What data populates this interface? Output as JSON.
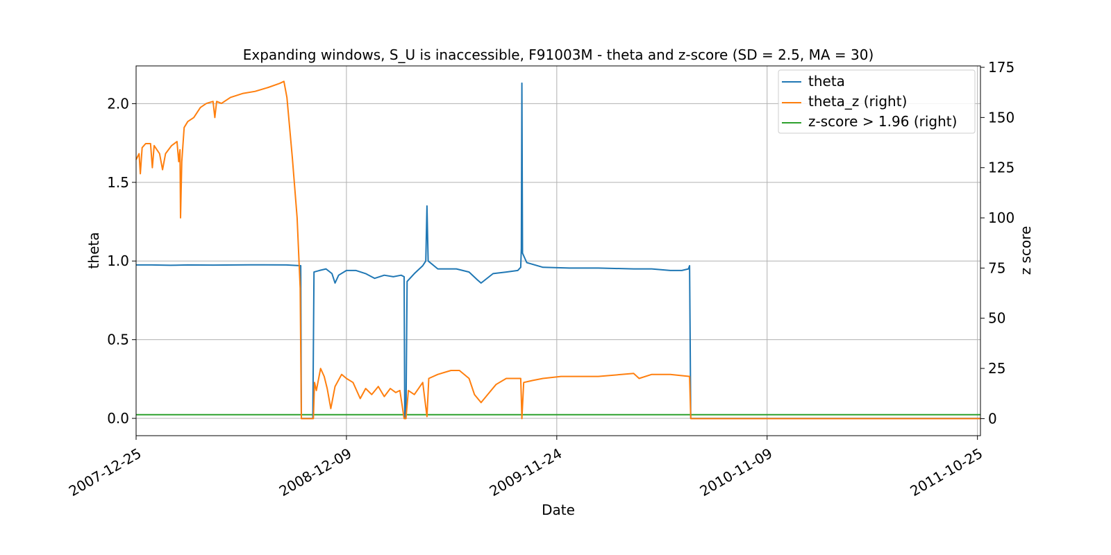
{
  "chart_data": {
    "type": "line",
    "title": "Expanding windows, S_U is inaccessible, F91003M - theta and z-score (SD = 2.5, MA = 30)",
    "xlabel": "Date",
    "ylabel_left": "theta",
    "ylabel_right": "z score",
    "xlim": [
      "2007-12-25",
      "2011-10-30"
    ],
    "ylim_left": [
      -0.11,
      2.24
    ],
    "ylim_right": [
      -8.5,
      175.7
    ],
    "x_ticks": [
      "2007-12-25",
      "2008-12-09",
      "2009-11-24",
      "2010-11-09",
      "2011-10-25"
    ],
    "y_ticks_left": [
      "0.0",
      "0.5",
      "1.0",
      "1.5",
      "2.0"
    ],
    "y_ticks_right": [
      "0",
      "25",
      "50",
      "75",
      "100",
      "125",
      "150",
      "175"
    ],
    "grid": true,
    "legend_position": "top-right",
    "legend": [
      "theta",
      "theta_z (right)",
      "z-score > 1.96 (right)"
    ],
    "colors": {
      "theta": "#1f77b4",
      "theta_z": "#ff7f0e",
      "threshold": "#2ca02c"
    },
    "series": [
      {
        "name": "theta",
        "axis": "left",
        "points": [
          [
            "2007-12-25",
            0.975
          ],
          [
            "2008-01-20",
            0.975
          ],
          [
            "2008-02-20",
            0.973
          ],
          [
            "2008-03-20",
            0.975
          ],
          [
            "2008-05-01",
            0.974
          ],
          [
            "2008-07-01",
            0.976
          ],
          [
            "2008-08-31",
            0.975
          ],
          [
            "2008-09-24",
            0.97
          ],
          [
            "2008-09-25",
            0.0
          ],
          [
            "2008-10-14",
            0.0
          ],
          [
            "2008-10-16",
            0.93
          ],
          [
            "2008-10-25",
            0.94
          ],
          [
            "2008-11-05",
            0.95
          ],
          [
            "2008-11-15",
            0.92
          ],
          [
            "2008-11-20",
            0.86
          ],
          [
            "2008-11-26",
            0.91
          ],
          [
            "2008-12-09",
            0.94
          ],
          [
            "2008-12-25",
            0.94
          ],
          [
            "2009-01-10",
            0.92
          ],
          [
            "2009-01-25",
            0.89
          ],
          [
            "2009-02-10",
            0.91
          ],
          [
            "2009-02-25",
            0.9
          ],
          [
            "2009-03-10",
            0.91
          ],
          [
            "2009-03-15",
            0.9
          ],
          [
            "2009-03-16",
            0.0
          ],
          [
            "2009-03-18",
            0.0
          ],
          [
            "2009-03-20",
            0.87
          ],
          [
            "2009-04-01",
            0.92
          ],
          [
            "2009-04-15",
            0.97
          ],
          [
            "2009-04-20",
            1.0
          ],
          [
            "2009-04-22",
            1.35
          ],
          [
            "2009-04-24",
            1.0
          ],
          [
            "2009-05-10",
            0.95
          ],
          [
            "2009-06-10",
            0.95
          ],
          [
            "2009-07-01",
            0.93
          ],
          [
            "2009-07-15",
            0.88
          ],
          [
            "2009-07-21",
            0.86
          ],
          [
            "2009-08-10",
            0.92
          ],
          [
            "2009-09-01",
            0.93
          ],
          [
            "2009-09-20",
            0.94
          ],
          [
            "2009-09-25",
            0.96
          ],
          [
            "2009-09-26",
            1.08
          ],
          [
            "2009-09-27",
            2.13
          ],
          [
            "2009-09-28",
            1.05
          ],
          [
            "2009-10-05",
            0.99
          ],
          [
            "2009-11-01",
            0.96
          ],
          [
            "2009-12-15",
            0.955
          ],
          [
            "2010-02-01",
            0.955
          ],
          [
            "2010-04-01",
            0.95
          ],
          [
            "2010-05-01",
            0.95
          ],
          [
            "2010-06-01",
            0.94
          ],
          [
            "2010-06-20",
            0.94
          ],
          [
            "2010-07-01",
            0.95
          ],
          [
            "2010-07-03",
            0.97
          ],
          [
            "2010-07-05",
            0.0
          ],
          [
            "2011-10-30",
            0.0
          ]
        ]
      },
      {
        "name": "theta_z (right)",
        "axis": "right",
        "points": [
          [
            "2007-12-25",
            129
          ],
          [
            "2007-12-30",
            132
          ],
          [
            "2008-01-01",
            122
          ],
          [
            "2008-01-04",
            135
          ],
          [
            "2008-01-10",
            137
          ],
          [
            "2008-01-18",
            137
          ],
          [
            "2008-01-21",
            125
          ],
          [
            "2008-01-24",
            136
          ],
          [
            "2008-02-02",
            132
          ],
          [
            "2008-02-07",
            124
          ],
          [
            "2008-02-12",
            132
          ],
          [
            "2008-02-22",
            136
          ],
          [
            "2008-03-02",
            138
          ],
          [
            "2008-03-05",
            128
          ],
          [
            "2008-03-07",
            134
          ],
          [
            "2008-03-08",
            100
          ],
          [
            "2008-03-10",
            128
          ],
          [
            "2008-03-14",
            145
          ],
          [
            "2008-03-20",
            148
          ],
          [
            "2008-03-30",
            150
          ],
          [
            "2008-04-10",
            155
          ],
          [
            "2008-04-20",
            157
          ],
          [
            "2008-05-01",
            158
          ],
          [
            "2008-05-04",
            150
          ],
          [
            "2008-05-07",
            158
          ],
          [
            "2008-05-15",
            157
          ],
          [
            "2008-05-30",
            160
          ],
          [
            "2008-06-20",
            162
          ],
          [
            "2008-07-10",
            163
          ],
          [
            "2008-08-01",
            165
          ],
          [
            "2008-08-20",
            167
          ],
          [
            "2008-08-27",
            168
          ],
          [
            "2008-09-01",
            160
          ],
          [
            "2008-09-10",
            130
          ],
          [
            "2008-09-18",
            100
          ],
          [
            "2008-09-23",
            65
          ],
          [
            "2008-09-25",
            0
          ],
          [
            "2008-10-15",
            0
          ],
          [
            "2008-10-17",
            18
          ],
          [
            "2008-10-20",
            14
          ],
          [
            "2008-10-27",
            25
          ],
          [
            "2008-11-02",
            21
          ],
          [
            "2008-11-07",
            15
          ],
          [
            "2008-11-13",
            5
          ],
          [
            "2008-11-20",
            16
          ],
          [
            "2008-12-01",
            22
          ],
          [
            "2008-12-09",
            20
          ],
          [
            "2008-12-20",
            18
          ],
          [
            "2009-01-01",
            10
          ],
          [
            "2009-01-10",
            15
          ],
          [
            "2009-01-20",
            12
          ],
          [
            "2009-01-31",
            16
          ],
          [
            "2009-02-10",
            11
          ],
          [
            "2009-02-20",
            15
          ],
          [
            "2009-03-01",
            13
          ],
          [
            "2009-03-08",
            14
          ],
          [
            "2009-03-15",
            0
          ],
          [
            "2009-03-18",
            0
          ],
          [
            "2009-03-22",
            14
          ],
          [
            "2009-04-01",
            12
          ],
          [
            "2009-04-15",
            18
          ],
          [
            "2009-04-22",
            1
          ],
          [
            "2009-04-25",
            20
          ],
          [
            "2009-05-10",
            22
          ],
          [
            "2009-06-01",
            24
          ],
          [
            "2009-06-15",
            24
          ],
          [
            "2009-07-01",
            20
          ],
          [
            "2009-07-10",
            12
          ],
          [
            "2009-07-21",
            8
          ],
          [
            "2009-08-01",
            12
          ],
          [
            "2009-08-15",
            17
          ],
          [
            "2009-09-01",
            20
          ],
          [
            "2009-09-25",
            20
          ],
          [
            "2009-09-26",
            10
          ],
          [
            "2009-09-27",
            0
          ],
          [
            "2009-09-30",
            18
          ],
          [
            "2009-10-15",
            19
          ],
          [
            "2009-11-01",
            20
          ],
          [
            "2009-12-01",
            21
          ],
          [
            "2010-02-01",
            21
          ],
          [
            "2010-04-01",
            22.5
          ],
          [
            "2010-04-10",
            20
          ],
          [
            "2010-05-01",
            22
          ],
          [
            "2010-06-01",
            22
          ],
          [
            "2010-07-03",
            21
          ],
          [
            "2010-07-05",
            0
          ],
          [
            "2011-10-30",
            0
          ]
        ]
      },
      {
        "name": "z-score > 1.96 (right)",
        "axis": "right",
        "points": [
          [
            "2007-12-25",
            1.96
          ],
          [
            "2011-10-30",
            1.96
          ]
        ]
      }
    ]
  }
}
